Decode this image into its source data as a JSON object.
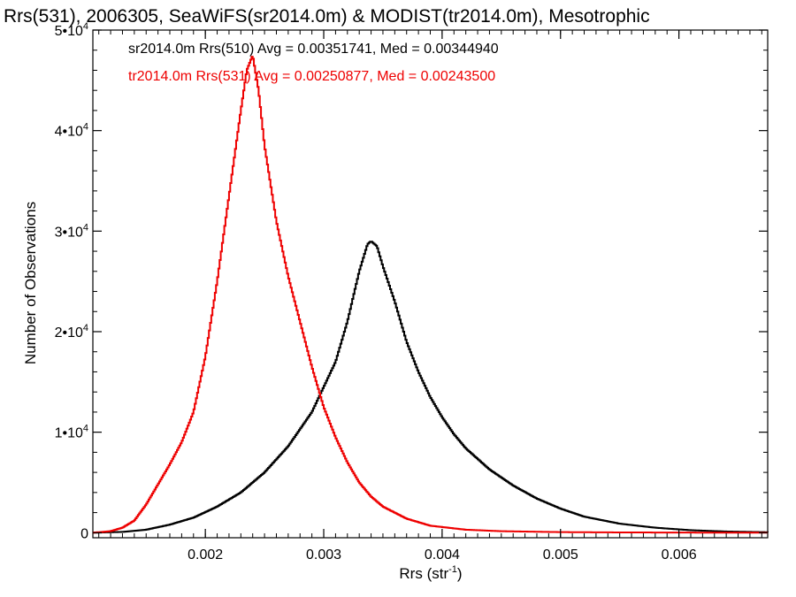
{
  "chart_data": {
    "type": "line",
    "title": "Rrs(531), 2006305, SeaWiFS(sr2014.0m) & MODIST(tr2014.0m), Mesotrophic",
    "xlabel": "Rrs (str",
    "xlabel_sup": "-1",
    "xlabel_suffix": ")",
    "ylabel": "Number of Observations",
    "xlim": [
      0.00105,
      0.00675
    ],
    "ylim": [
      -500,
      50000
    ],
    "x_ticks": [
      {
        "value": 0.002,
        "label": "0.002"
      },
      {
        "value": 0.003,
        "label": "0.003"
      },
      {
        "value": 0.004,
        "label": "0.004"
      },
      {
        "value": 0.005,
        "label": "0.005"
      },
      {
        "value": 0.006,
        "label": "0.006"
      }
    ],
    "y_ticks": [
      {
        "value": 0,
        "base": "0",
        "exp": ""
      },
      {
        "value": 10000,
        "base": "1•10",
        "exp": "4"
      },
      {
        "value": 20000,
        "base": "2•10",
        "exp": "4"
      },
      {
        "value": 30000,
        "base": "3•10",
        "exp": "4"
      },
      {
        "value": 40000,
        "base": "4•10",
        "exp": "4"
      },
      {
        "value": 50000,
        "base": "5•10",
        "exp": "4"
      }
    ],
    "series": [
      {
        "name": "sr2014.0m Rrs(510) Avg = 0.00351741, Med = 0.00344940",
        "color": "#000000",
        "x": [
          0.00105,
          0.0013,
          0.0015,
          0.0017,
          0.0019,
          0.0021,
          0.0023,
          0.0025,
          0.0027,
          0.0029,
          0.0031,
          0.0032,
          0.0033,
          0.00337,
          0.0034,
          0.00345,
          0.0035,
          0.0036,
          0.0037,
          0.0038,
          0.0039,
          0.004,
          0.0041,
          0.0042,
          0.0044,
          0.0046,
          0.0048,
          0.005,
          0.0052,
          0.0055,
          0.0058,
          0.0061,
          0.0064,
          0.00675
        ],
        "y": [
          0,
          80,
          300,
          800,
          1500,
          2600,
          4000,
          6000,
          8600,
          12000,
          17000,
          21000,
          26000,
          28700,
          29000,
          28500,
          26500,
          23000,
          19000,
          16000,
          13500,
          11500,
          9800,
          8400,
          6300,
          4700,
          3400,
          2400,
          1600,
          900,
          500,
          250,
          120,
          50
        ]
      },
      {
        "name": "tr2014.0m Rrs(531) Avg = 0.00250877, Med = 0.00243500",
        "color": "#ee0000",
        "x": [
          0.00105,
          0.0012,
          0.0013,
          0.0014,
          0.0015,
          0.0016,
          0.0017,
          0.0018,
          0.0019,
          0.002,
          0.0021,
          0.0022,
          0.0023,
          0.00235,
          0.0024,
          0.00245,
          0.0025,
          0.0026,
          0.0027,
          0.0028,
          0.0029,
          0.003,
          0.0031,
          0.0032,
          0.0033,
          0.0034,
          0.0035,
          0.0037,
          0.0039,
          0.0042,
          0.0045,
          0.005,
          0.0055,
          0.0062,
          0.00675
        ],
        "y": [
          0,
          150,
          500,
          1200,
          2800,
          4800,
          6800,
          9000,
          12000,
          17500,
          25000,
          33500,
          42000,
          46000,
          47500,
          44000,
          38500,
          31000,
          25500,
          21000,
          16500,
          12500,
          9500,
          7000,
          5000,
          3600,
          2600,
          1400,
          700,
          300,
          150,
          60,
          30,
          10,
          5
        ]
      }
    ],
    "grid": false,
    "legend": "top-left"
  }
}
